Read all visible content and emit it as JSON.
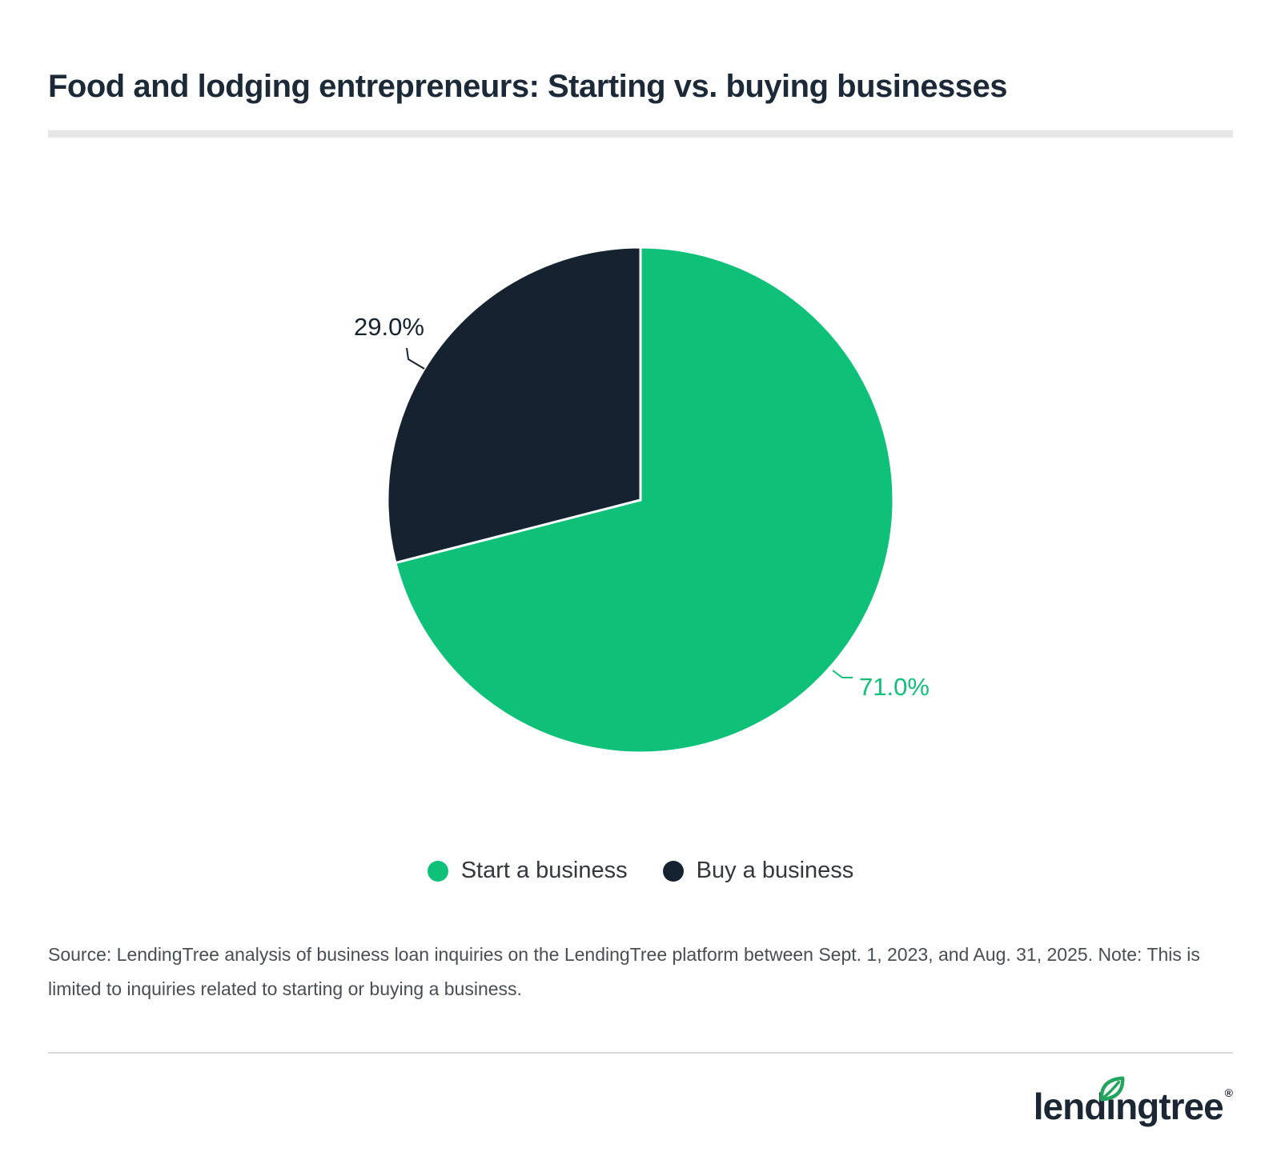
{
  "header": {
    "title": "Food and lodging entrepreneurs: Starting vs. buying businesses"
  },
  "chart_data": {
    "type": "pie",
    "title": "Food and lodging entrepreneurs: Starting vs. buying businesses",
    "direction": "clockwise",
    "start_angle_deg": 0,
    "legend_position": "bottom",
    "slices": [
      {
        "label": "Start a business",
        "value": 71.0,
        "display": "71.0%",
        "color": "#0ec078"
      },
      {
        "label": "Buy a business",
        "value": 29.0,
        "display": "29.0%",
        "color": "#152230"
      }
    ]
  },
  "source": {
    "text": "Source: LendingTree analysis of business loan inquiries on the LendingTree platform between Sept. 1, 2023, and Aug. 31, 2025. Note: This is limited to inquiries related to starting or buying a business."
  },
  "footer": {
    "logo": {
      "part1": "lend",
      "dotless_i": "ı",
      "part2": "ngtree",
      "registered": "®",
      "leaf_color": "#23a45f",
      "text_color": "#1b2735"
    }
  },
  "colors": {
    "accent_green": "#0ec078",
    "brand_navy": "#152230",
    "title_navy": "#1c2938",
    "divider_gray": "#e6e6e6",
    "rule_gray": "#d9d9d9",
    "source_gray": "#474e54"
  }
}
